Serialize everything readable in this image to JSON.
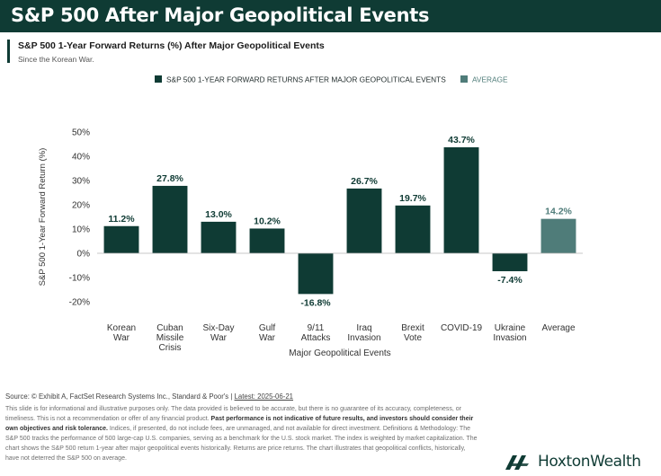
{
  "header": {
    "title": "S&P 500 After Major Geopolitical Events"
  },
  "subtitle": "S&P 500 1-Year Forward Returns (%) After Major Geopolitical Events",
  "subsubtitle": "Since the Korean War.",
  "chart_data": {
    "type": "bar",
    "ylabel": "S&P 500 1-Year Forward Return (%)",
    "xlabel": "Major Geopolitical Events",
    "ylim": [
      -20,
      50
    ],
    "yticks": [
      -20,
      -10,
      0,
      10,
      20,
      30,
      40,
      50
    ],
    "ytick_labels": [
      "-20%",
      "-10%",
      "0%",
      "10%",
      "20%",
      "30%",
      "40%",
      "50%"
    ],
    "grid": false,
    "legend_position": "top-center",
    "legend": [
      {
        "label": "S&P 500 1-YEAR FORWARD RETURNS AFTER MAJOR GEOPOLITICAL EVENTS",
        "color": "#0f3b34"
      },
      {
        "label": "AVERAGE",
        "color": "#4f7c79"
      }
    ],
    "categories": [
      [
        "Korean",
        "War"
      ],
      [
        "Cuban",
        "Missile",
        "Crisis"
      ],
      [
        "Six-Day",
        "War"
      ],
      [
        "Gulf",
        "War"
      ],
      [
        "9/11",
        "Attacks"
      ],
      [
        "Iraq",
        "Invasion"
      ],
      [
        "Brexit",
        "Vote"
      ],
      [
        "COVID-19"
      ],
      [
        "Ukraine",
        "Invasion"
      ],
      [
        "Average"
      ]
    ],
    "values": [
      11.2,
      27.8,
      13.0,
      10.2,
      -16.8,
      26.7,
      19.7,
      43.7,
      -7.4,
      14.2
    ],
    "value_labels": [
      "11.2%",
      "27.8%",
      "13.0%",
      "10.2%",
      "-16.8%",
      "26.7%",
      "19.7%",
      "43.7%",
      "-7.4%",
      "14.2%"
    ],
    "bar_colors": [
      "#0f3b34",
      "#0f3b34",
      "#0f3b34",
      "#0f3b34",
      "#0f3b34",
      "#0f3b34",
      "#0f3b34",
      "#0f3b34",
      "#0f3b34",
      "#4f7c79"
    ]
  },
  "footer": {
    "source_prefix": "Source: © Exhibit A, FactSet Research Systems Inc., Standard & Poor's | ",
    "source_latest": "Latest: 2025-06-21",
    "disclaimer_1": "This slide is for informational and illustrative purposes only. The data provided is believed to be accurate, but there is no guarantee of its accuracy, completeness, or timeliness. This is not a recommendation or offer of any financial product. ",
    "disclaimer_bold": "Past performance is not indicative of future results, and investors should consider their own objectives and risk tolerance.",
    "disclaimer_2": " Indices, if presented, do not include fees, are unmanaged, and not available for direct investment. Definitions & Methodology: The S&P 500 tracks the performance of 500 large-cap U.S. companies, serving as a benchmark for the U.S. stock market. The index is weighted by market capitalization. The chart shows the S&P 500 return 1-year after major geopolitical events historically. Returns are price returns. The chart illustrates that geopolitical conflicts, historically, have not deterred the S&P 500 on average."
  },
  "brand": {
    "name": "HoxtonWealth",
    "logo_icon": "hoxton-logo-icon",
    "color": "#0f3b34"
  }
}
